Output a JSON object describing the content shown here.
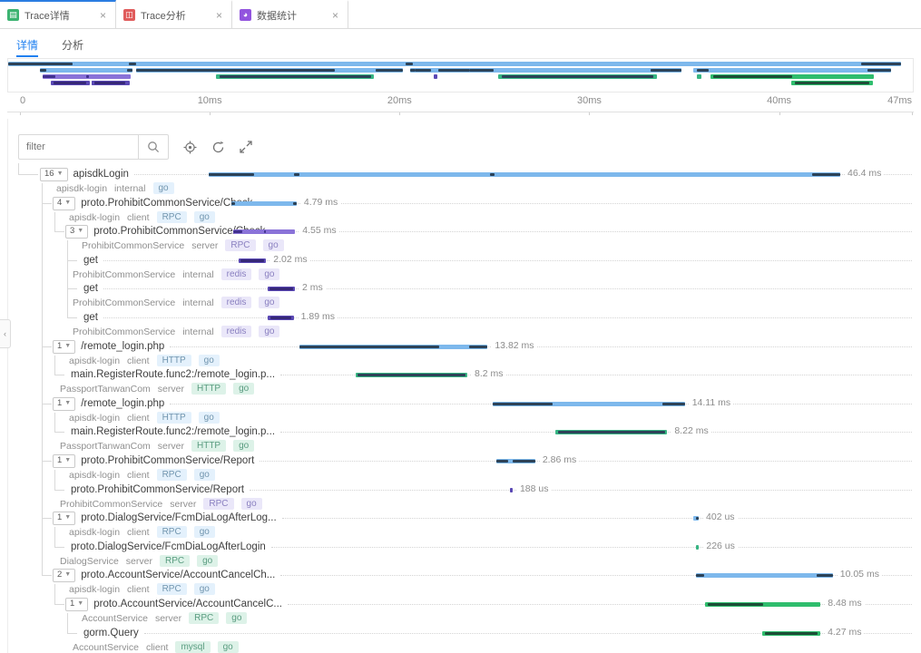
{
  "window_tabs": [
    {
      "label": "Trace详情",
      "icon": "trace-detail-tab-icon",
      "icon_color": "#3cb371",
      "glyph": "▤",
      "active": true
    },
    {
      "label": "Trace分析",
      "icon": "trace-analysis-tab-icon",
      "icon_color": "#e05b5b",
      "glyph": "◫",
      "active": false
    },
    {
      "label": "数据统计",
      "icon": "data-stats-tab-icon",
      "icon_color": "#9254de",
      "glyph": "◕",
      "active": false
    }
  ],
  "close_glyph": "×",
  "view_tabs": [
    {
      "label": "详情",
      "active": true
    },
    {
      "label": "分析",
      "active": false
    }
  ],
  "toolbar": {
    "filter_placeholder": "filter"
  },
  "panel": {
    "collapse_glyph": "‹"
  },
  "time_axis": {
    "total_ms": 47,
    "labels": [
      {
        "text": "0",
        "ms": 0
      },
      {
        "text": "10ms",
        "ms": 10
      },
      {
        "text": "20ms",
        "ms": 20
      },
      {
        "text": "30ms",
        "ms": 30
      },
      {
        "text": "40ms",
        "ms": 40
      },
      {
        "text": "47ms",
        "ms": 47
      }
    ]
  },
  "colors": {
    "accent": "#2b7de1",
    "subtab_accent": "#2080f0",
    "themes": {
      "blue": {
        "bar": "#7db8ec",
        "mark": "#2c4257"
      },
      "purple": {
        "bar": "#8a73d8",
        "mark": "#41318f"
      },
      "purpleDark": {
        "bar": "#5a48b4",
        "mark": "#352777"
      },
      "green": {
        "bar": "#38b583",
        "mark": "#2c4257"
      },
      "green2": {
        "bar": "#2fbd6d",
        "mark": "#1e4d37"
      }
    },
    "chips": {
      "blue": {
        "bg": "#e4f1fc",
        "fg": "#7195ae"
      },
      "purple": {
        "bg": "#eae7f9",
        "fg": "#8a80c0"
      },
      "green": {
        "bg": "#ddf2e8",
        "fg": "#5a9c80"
      }
    }
  },
  "spans": [
    {
      "badge": "16",
      "depth": 0,
      "title": "apisdkLogin",
      "tags": [
        [
          "apisdk-login"
        ],
        [
          "internal"
        ],
        [
          "go",
          "blue"
        ]
      ],
      "theme": "blue",
      "start": 0,
      "dur": 46.4,
      "dur_label": "46.4 ms",
      "marks": [
        [
          0,
          0.072
        ],
        [
          0.135,
          0.008
        ],
        [
          0.445,
          0.008
        ],
        [
          0.955,
          0.045
        ]
      ]
    },
    {
      "badge": "4",
      "depth": 1,
      "title": "proto.ProhibitCommonService/Check",
      "tags": [
        [
          "apisdk-login"
        ],
        [
          "client"
        ],
        [
          "RPC",
          "blue"
        ],
        [
          "go",
          "blue"
        ]
      ],
      "theme": "blue",
      "start": 1.67,
      "dur": 4.79,
      "dur_label": "4.79 ms",
      "marks": [
        [
          0,
          0.06
        ],
        [
          0.94,
          0.06
        ]
      ]
    },
    {
      "badge": "3",
      "depth": 2,
      "title": "proto.ProhibitCommonService/Check",
      "tags": [
        [
          "ProhibitCommonService"
        ],
        [
          "server"
        ],
        [
          "RPC",
          "purple"
        ],
        [
          "go",
          "purple"
        ]
      ],
      "theme": "purple",
      "start": 1.8,
      "dur": 4.55,
      "dur_label": "4.55 ms",
      "marks": [
        [
          0,
          0.14
        ],
        [
          0.5,
          0.03
        ]
      ]
    },
    {
      "badge": "",
      "depth": 3,
      "title": "get",
      "tags": [
        [
          "ProhibitCommonService"
        ],
        [
          "internal"
        ],
        [
          "redis",
          "purple"
        ],
        [
          "go",
          "purple"
        ]
      ],
      "theme": "purpleDark",
      "start": 2.2,
      "dur": 2.02,
      "dur_label": "2.02 ms",
      "marks": [
        [
          0.08,
          0.84
        ]
      ]
    },
    {
      "badge": "",
      "depth": 3,
      "title": "get",
      "tags": [
        [
          "ProhibitCommonService"
        ],
        [
          "internal"
        ],
        [
          "redis",
          "purple"
        ],
        [
          "go",
          "purple"
        ]
      ],
      "theme": "purpleDark",
      "start": 4.33,
      "dur": 2,
      "dur_label": "2 ms",
      "marks": [
        [
          0.08,
          0.84
        ]
      ]
    },
    {
      "badge": "",
      "depth": 3,
      "title": "get",
      "tags": [
        [
          "ProhibitCommonService"
        ],
        [
          "internal"
        ],
        [
          "redis",
          "purple"
        ],
        [
          "go",
          "purple"
        ]
      ],
      "theme": "purpleDark",
      "start": 4.35,
      "dur": 1.89,
      "dur_label": "1.89 ms",
      "marks": [
        [
          0.08,
          0.84
        ]
      ]
    },
    {
      "badge": "1",
      "depth": 1,
      "title": "/remote_login.php",
      "tags": [
        [
          "apisdk-login"
        ],
        [
          "client"
        ],
        [
          "HTTP",
          "blue"
        ],
        [
          "go",
          "blue"
        ]
      ],
      "theme": "blue",
      "start": 6.67,
      "dur": 13.82,
      "dur_label": "13.82 ms",
      "marks": [
        [
          0,
          0.745
        ],
        [
          0.9,
          0.1
        ]
      ]
    },
    {
      "badge": "",
      "depth": 2,
      "title": "main.RegisterRoute.func2:/remote_login.p...",
      "tags": [
        [
          "PassportTanwanCom"
        ],
        [
          "server"
        ],
        [
          "HTTP",
          "green"
        ],
        [
          "go",
          "green"
        ]
      ],
      "theme": "green",
      "start": 10.8,
      "dur": 8.2,
      "dur_label": "8.2 ms",
      "marks": [
        [
          0.02,
          0.96
        ]
      ]
    },
    {
      "badge": "1",
      "depth": 1,
      "title": "/remote_login.php",
      "tags": [
        [
          "apisdk-login"
        ],
        [
          "client"
        ],
        [
          "HTTP",
          "blue"
        ],
        [
          "go",
          "blue"
        ]
      ],
      "theme": "blue",
      "start": 20.87,
      "dur": 14.11,
      "dur_label": "14.11 ms",
      "marks": [
        [
          0,
          0.31
        ],
        [
          0.885,
          0.115
        ]
      ]
    },
    {
      "badge": "",
      "depth": 2,
      "title": "main.RegisterRoute.func2:/remote_login.p...",
      "tags": [
        [
          "PassportTanwanCom"
        ],
        [
          "server"
        ],
        [
          "HTTP",
          "green"
        ],
        [
          "go",
          "green"
        ]
      ],
      "theme": "green",
      "start": 25.47,
      "dur": 8.22,
      "dur_label": "8.22 ms",
      "marks": [
        [
          0.02,
          0.96
        ]
      ]
    },
    {
      "badge": "1",
      "depth": 1,
      "title": "proto.ProhibitCommonService/Report",
      "tags": [
        [
          "apisdk-login"
        ],
        [
          "client"
        ],
        [
          "RPC",
          "blue"
        ],
        [
          "go",
          "blue"
        ]
      ],
      "theme": "blue",
      "start": 21.13,
      "dur": 2.86,
      "dur_label": "2.86 ms",
      "marks": [
        [
          0,
          0.3
        ],
        [
          0.42,
          0.58
        ]
      ]
    },
    {
      "badge": "",
      "depth": 2,
      "title": "proto.ProhibitCommonService/Report",
      "tags": [
        [
          "ProhibitCommonService"
        ],
        [
          "server"
        ],
        [
          "RPC",
          "purple"
        ],
        [
          "go",
          "purple"
        ]
      ],
      "theme": "purpleDark",
      "start": 22.13,
      "dur": 0.188,
      "dur_label": "188 us",
      "marks": []
    },
    {
      "badge": "1",
      "depth": 1,
      "title": "proto.DialogService/FcmDiaLogAfterLog...",
      "tags": [
        [
          "apisdk-login"
        ],
        [
          "client"
        ],
        [
          "RPC",
          "blue"
        ],
        [
          "go",
          "blue"
        ]
      ],
      "theme": "blue",
      "start": 35.6,
      "dur": 0.402,
      "dur_label": "402 us",
      "marks": [
        [
          0.5,
          0.5
        ]
      ]
    },
    {
      "badge": "",
      "depth": 2,
      "title": "proto.DialogService/FcmDiaLogAfterLogin",
      "tags": [
        [
          "DialogService"
        ],
        [
          "server"
        ],
        [
          "RPC",
          "green"
        ],
        [
          "go",
          "green"
        ]
      ],
      "theme": "green",
      "start": 35.8,
      "dur": 0.226,
      "dur_label": "226 us",
      "marks": []
    },
    {
      "badge": "2",
      "depth": 1,
      "title": "proto.AccountService/AccountCancelCh...",
      "tags": [
        [
          "apisdk-login"
        ],
        [
          "client"
        ],
        [
          "RPC",
          "blue"
        ],
        [
          "go",
          "blue"
        ]
      ],
      "theme": "blue",
      "start": 35.8,
      "dur": 10.05,
      "dur_label": "10.05 ms",
      "marks": [
        [
          0,
          0.06
        ],
        [
          0.88,
          0.12
        ]
      ]
    },
    {
      "badge": "1",
      "depth": 2,
      "title": "proto.AccountService/AccountCancelC...",
      "tags": [
        [
          "AccountService"
        ],
        [
          "server"
        ],
        [
          "RPC",
          "green"
        ],
        [
          "go",
          "green"
        ]
      ],
      "theme": "green2",
      "start": 36.47,
      "dur": 8.48,
      "dur_label": "8.48 ms",
      "marks": [
        [
          0.02,
          0.48
        ]
      ]
    },
    {
      "badge": "",
      "depth": 3,
      "title": "gorm.Query",
      "tags": [
        [
          "AccountService"
        ],
        [
          "client"
        ],
        [
          "mysql",
          "green"
        ],
        [
          "go",
          "green"
        ]
      ],
      "theme": "green2",
      "start": 40.67,
      "dur": 4.27,
      "dur_label": "4.27 ms",
      "marks": [
        [
          0.05,
          0.9
        ]
      ]
    }
  ],
  "minimap_rows": [
    [
      0
    ],
    [
      1,
      6,
      8,
      10,
      12,
      14
    ],
    [
      2,
      7,
      9,
      11,
      13,
      15
    ],
    [
      3,
      4,
      5,
      16
    ]
  ]
}
